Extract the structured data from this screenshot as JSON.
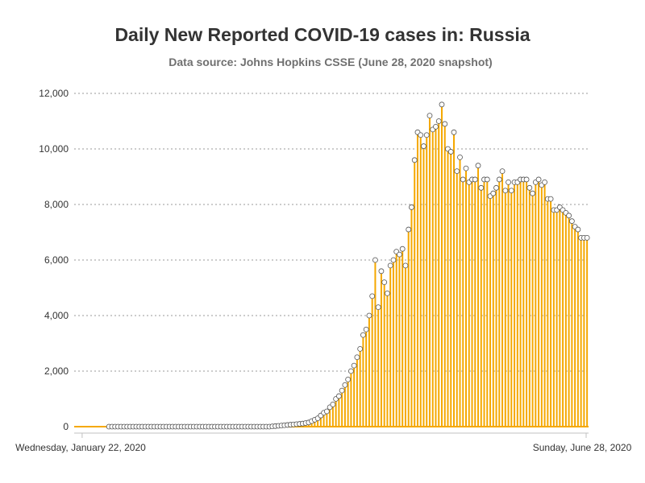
{
  "chart_data": {
    "type": "bar",
    "title": "Daily New Reported COVID-19 cases in: Russia",
    "subtitle": "Data source: Johns Hopkins CSSE (June 28, 2020 snapshot)",
    "xlabel": "",
    "ylabel": "",
    "x_range": [
      "2020-01-22",
      "2020-06-28"
    ],
    "x_tick_labels": [
      "Wednesday, January 22, 2020",
      "Sunday, June 28, 2020"
    ],
    "ylim": [
      0,
      12000
    ],
    "y_ticks": [
      0,
      2000,
      4000,
      6000,
      8000,
      10000,
      12000
    ],
    "y_tick_labels": [
      "0",
      "2,000",
      "4,000",
      "6,000",
      "8,000",
      "10,000",
      "12,000"
    ],
    "grid": "horizontal dotted",
    "colors": {
      "bar": "#f5a800",
      "marker_fill": "#ffffff",
      "marker_stroke": "#555555",
      "grid": "#999999",
      "axis": "#c0c0c0"
    },
    "series": [
      {
        "start_date": "2020-01-22",
        "values": [
          0,
          0,
          0,
          0,
          0,
          0,
          0,
          0,
          0,
          0,
          0,
          0,
          0,
          0,
          0,
          0,
          0,
          0,
          0,
          0,
          0,
          0,
          0,
          0,
          0,
          0,
          0,
          0,
          0,
          0,
          0,
          0,
          0,
          0,
          0,
          0,
          0,
          0,
          0,
          0,
          0,
          0,
          0,
          0,
          0,
          0,
          0,
          0,
          0,
          0,
          0,
          0,
          0,
          0,
          0,
          0,
          0,
          0,
          0,
          0,
          0,
          0,
          0,
          0,
          0,
          10,
          20,
          30,
          40,
          50,
          60,
          70,
          80,
          90,
          100,
          110,
          130,
          150,
          200,
          250,
          300,
          400,
          500,
          550,
          700,
          800,
          1000,
          1100,
          1300,
          1500,
          1700,
          2000,
          2200,
          2500,
          2800,
          3300,
          3500,
          4000,
          4700,
          6000,
          4300,
          5600,
          5200,
          4800,
          5800,
          6000,
          6300,
          6200,
          6400,
          5800,
          7100,
          7900,
          9600,
          10600,
          10500,
          10100,
          10500,
          11200,
          10700,
          10800,
          11000,
          11600,
          10900,
          10000,
          9900,
          10600,
          9200,
          9700,
          8900,
          9300,
          8800,
          8900,
          8900,
          9400,
          8600,
          8900,
          8900,
          8300,
          8400,
          8600,
          8900,
          9200,
          8500,
          8800,
          8500,
          8800,
          8800,
          8900,
          8900,
          8900,
          8600,
          8400,
          8800,
          8900,
          8700,
          8800,
          8200,
          8200,
          7800,
          7800,
          7900,
          7800,
          7700,
          7600,
          7400,
          7200,
          7100,
          6800,
          6800,
          6800
        ]
      }
    ]
  }
}
